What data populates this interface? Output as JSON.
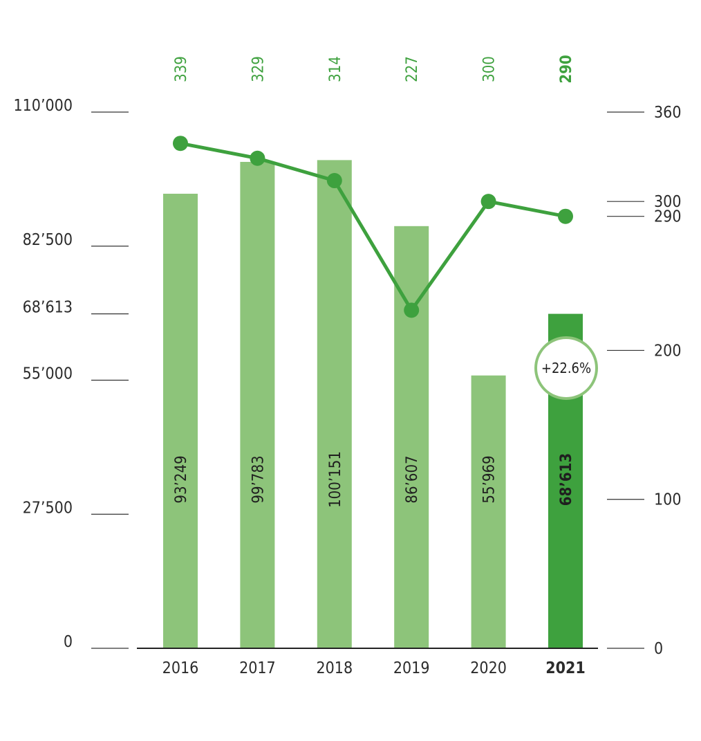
{
  "chart_data": {
    "type": "bar",
    "categories": [
      "2016",
      "2017",
      "2018",
      "2019",
      "2020",
      "2021"
    ],
    "highlight_category": "2021",
    "bar_series": {
      "values": [
        93249,
        99783,
        100151,
        86607,
        55969,
        68613
      ],
      "labels": [
        "93’249",
        "99’783",
        "100’151",
        "86’607",
        "55’969",
        "68’613"
      ],
      "axis": "left",
      "color": "#8dc47a",
      "highlight_color": "#3ea13e"
    },
    "line_series": {
      "type": "line",
      "values": [
        339,
        329,
        314,
        227,
        300,
        290
      ],
      "labels": [
        "339",
        "329",
        "314",
        "227",
        "300",
        "290"
      ],
      "axis": "right",
      "color": "#3ea13e"
    },
    "left_axis": {
      "ylim": [
        0,
        110000
      ],
      "ticks": [
        0,
        27500,
        55000,
        68613,
        82500,
        110000
      ],
      "tick_labels": [
        "0",
        "27’500",
        "55’000",
        "68’613",
        "82’500",
        "110’000"
      ]
    },
    "right_axis": {
      "ylim": [
        0,
        360
      ],
      "ticks": [
        0,
        100,
        200,
        290,
        300,
        360
      ],
      "tick_labels": [
        "0",
        "100",
        "200",
        "290",
        "300",
        "360"
      ]
    },
    "annotation": {
      "category": "2021",
      "text": "+22.6%"
    },
    "grid": false,
    "legend": "none"
  }
}
